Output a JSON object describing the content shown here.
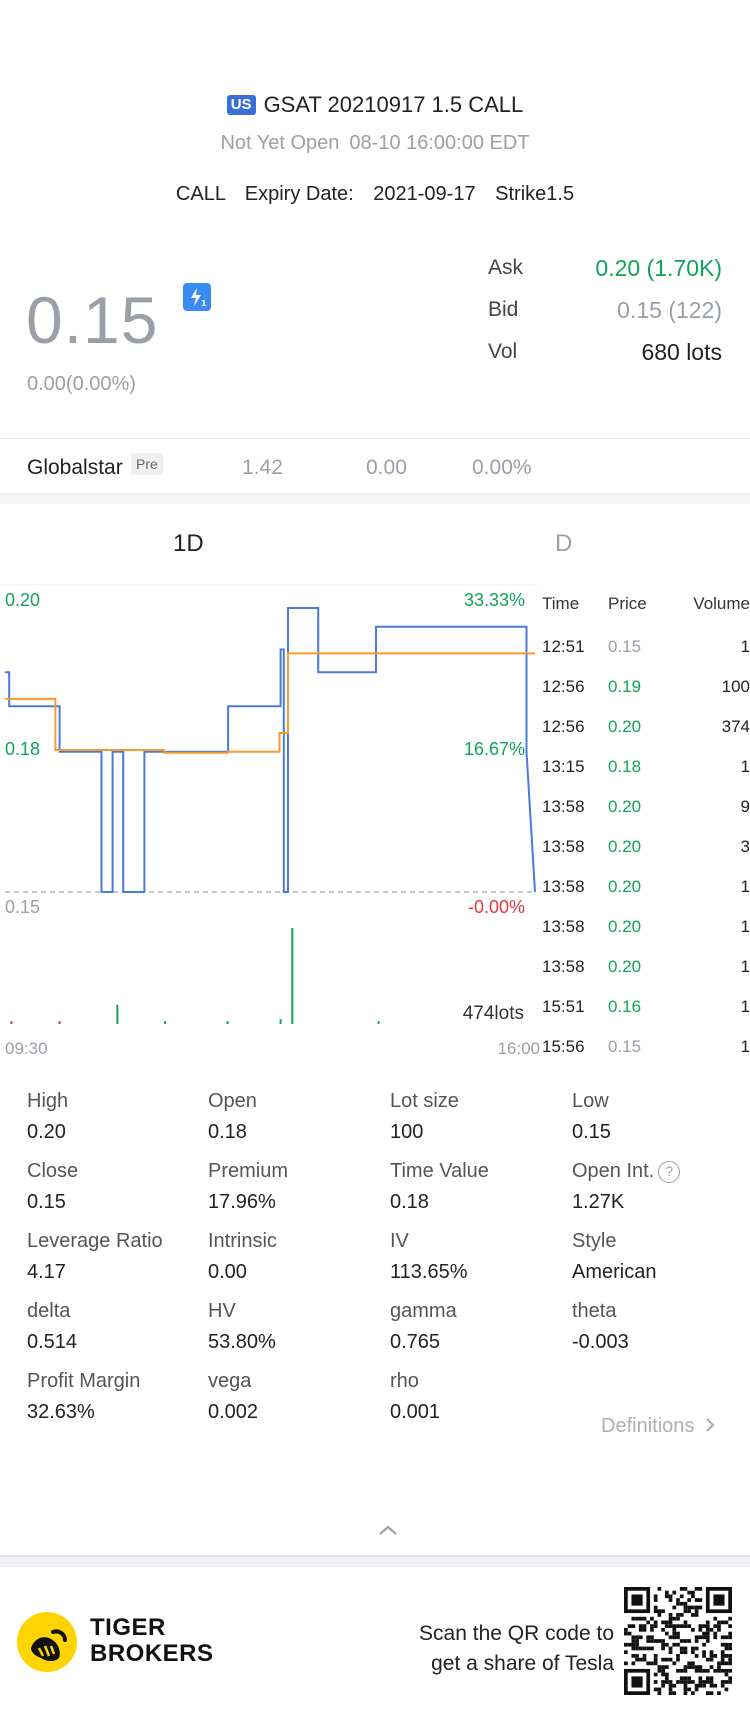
{
  "header": {
    "badge": "US",
    "title": "GSAT 20210917 1.5 CALL",
    "status": "Not Yet Open",
    "datetime": "08-10 16:00:00 EDT",
    "type": "CALL",
    "expiry_label": "Expiry Date:",
    "expiry_value": "2021-09-17",
    "strike_label": "Strike",
    "strike_value": "1.5"
  },
  "quote": {
    "price": "0.15",
    "flash_icon_text": "1",
    "change": "0.00(0.00%)",
    "ask_label": "Ask",
    "ask_value": "0.20 (1.70K)",
    "bid_label": "Bid",
    "bid_value": "0.15 (122)",
    "vol_label": "Vol",
    "vol_value": "680 lots"
  },
  "underlying": {
    "name": "Globalstar",
    "badge": "Pre",
    "price": "1.42",
    "change": "0.00",
    "change_pct": "0.00%"
  },
  "tabs": [
    "1D",
    "D"
  ],
  "chart_data": {
    "type": "line",
    "y_left_labels": [
      "0.20",
      "0.18",
      "0.15"
    ],
    "y_right_labels": [
      "33.33%",
      "16.67%",
      "-0.00%"
    ],
    "x_labels": [
      "09:30",
      "16:00"
    ],
    "volume_label": "474lots",
    "ylim": [
      0.15,
      0.2
    ],
    "xlim": [
      0,
      100
    ],
    "series": [
      {
        "color": "#4a7bdc",
        "x": [
          0,
          0.8,
          0.8,
          10.3,
          10.3,
          18.2,
          18.2,
          20.3,
          20.3,
          22.3,
          22.3,
          26.3,
          26.3,
          30.3,
          30.3,
          42.1,
          42.1,
          52.0,
          52.0,
          52.6,
          52.6,
          53.4,
          53.4,
          54.2,
          54.2,
          59.1,
          59.1,
          70.0,
          70.0,
          98.4,
          98.4,
          100
        ],
        "y": [
          0.1887,
          0.1887,
          0.1827,
          0.1827,
          0.1747,
          0.1747,
          0.15,
          0.15,
          0.1747,
          0.1747,
          0.15,
          0.15,
          0.1747,
          0.1747,
          0.1747,
          0.1747,
          0.1827,
          0.1827,
          0.1927,
          0.1927,
          0.15,
          0.15,
          0.2,
          0.2,
          0.2,
          0.2,
          0.1887,
          0.1887,
          0.1967,
          0.1967,
          0.1747,
          0.15
        ]
      },
      {
        "color": "#f39c2b",
        "x": [
          0,
          9.5,
          9.5,
          30.0,
          30.0,
          42.0,
          42.0,
          51.8,
          51.8,
          53.4,
          53.4,
          100
        ],
        "y": [
          0.184,
          0.184,
          0.175,
          0.175,
          0.1745,
          0.1745,
          0.1747,
          0.1747,
          0.178,
          0.178,
          0.192,
          0.192
        ]
      }
    ],
    "volume_bars": [
      {
        "x": 1.2,
        "h": 3,
        "color": "#e0383e"
      },
      {
        "x": 10.3,
        "h": 3,
        "color": "#e0383e"
      },
      {
        "x": 21.2,
        "h": 20,
        "color": "#11a35a"
      },
      {
        "x": 30.2,
        "h": 3,
        "color": "#11a35a"
      },
      {
        "x": 42.0,
        "h": 3,
        "color": "#11a35a"
      },
      {
        "x": 52.0,
        "h": 5,
        "color": "#11a35a"
      },
      {
        "x": 54.2,
        "h": 100,
        "color": "#11a35a"
      },
      {
        "x": 70.5,
        "h": 3,
        "color": "#11a35a"
      }
    ]
  },
  "ticks": {
    "headers": {
      "time": "Time",
      "price": "Price",
      "volume": "Volume"
    },
    "rows": [
      {
        "time": "12:51",
        "price": "0.15",
        "volume": "1",
        "color": "#9aa0a6"
      },
      {
        "time": "12:56",
        "price": "0.19",
        "volume": "100",
        "color": "#11a35a"
      },
      {
        "time": "12:56",
        "price": "0.20",
        "volume": "374",
        "color": "#11a35a"
      },
      {
        "time": "13:15",
        "price": "0.18",
        "volume": "1",
        "color": "#11a35a"
      },
      {
        "time": "13:58",
        "price": "0.20",
        "volume": "9",
        "color": "#11a35a"
      },
      {
        "time": "13:58",
        "price": "0.20",
        "volume": "3",
        "color": "#11a35a"
      },
      {
        "time": "13:58",
        "price": "0.20",
        "volume": "1",
        "color": "#11a35a"
      },
      {
        "time": "13:58",
        "price": "0.20",
        "volume": "1",
        "color": "#11a35a"
      },
      {
        "time": "13:58",
        "price": "0.20",
        "volume": "1",
        "color": "#11a35a"
      },
      {
        "time": "15:51",
        "price": "0.16",
        "volume": "1",
        "color": "#11a35a"
      },
      {
        "time": "15:56",
        "price": "0.15",
        "volume": "1",
        "color": "#9aa0a6"
      }
    ]
  },
  "stats": [
    {
      "label": "High",
      "value": "0.20"
    },
    {
      "label": "Open",
      "value": "0.18"
    },
    {
      "label": "Lot size",
      "value": "100"
    },
    {
      "label": "Low",
      "value": "0.15"
    },
    {
      "label": "Close",
      "value": "0.15"
    },
    {
      "label": "Premium",
      "value": "17.96%"
    },
    {
      "label": "Time Value",
      "value": "0.18"
    },
    {
      "label": "Open Int.",
      "value": "1.27K"
    },
    {
      "label": "Leverage Ratio",
      "value": "4.17"
    },
    {
      "label": "Intrinsic",
      "value": "0.00"
    },
    {
      "label": "IV",
      "value": "113.65%"
    },
    {
      "label": "Style",
      "value": "American"
    },
    {
      "label": "delta",
      "value": "0.514"
    },
    {
      "label": "HV",
      "value": "53.80%"
    },
    {
      "label": "gamma",
      "value": "0.765"
    },
    {
      "label": "theta",
      "value": "-0.003"
    },
    {
      "label": "Profit Margin",
      "value": "32.63%"
    },
    {
      "label": "vega",
      "value": "0.002"
    },
    {
      "label": "rho",
      "value": "0.001"
    }
  ],
  "help_icon_text": "?",
  "definitions_label": "Definitions",
  "footer": {
    "brand_line1": "TIGER",
    "brand_line2": "BROKERS",
    "scan_line1": "Scan the QR code to",
    "scan_line2": "get a share of Tesla"
  },
  "icons": [
    "flash-icon",
    "help-icon",
    "chevron-right-icon",
    "chevron-up-icon",
    "tiger-logo-icon",
    "qr-code"
  ]
}
